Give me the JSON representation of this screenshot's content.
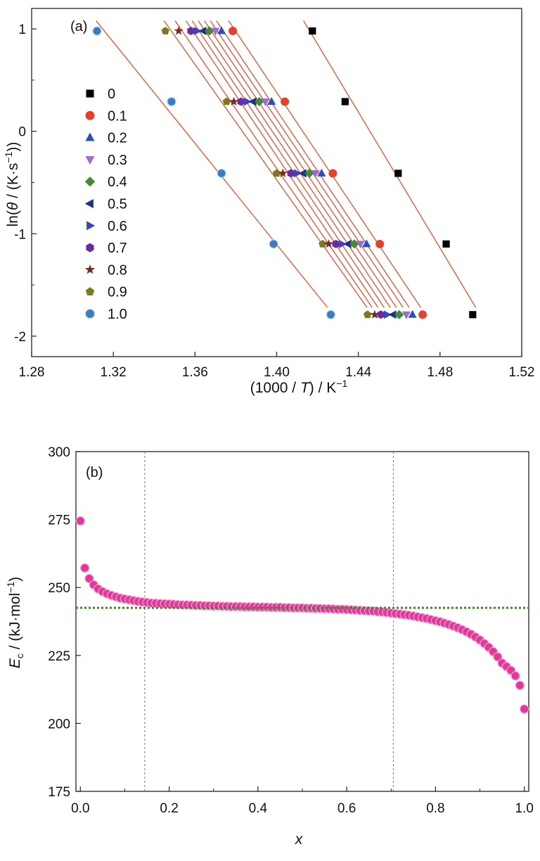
{
  "chart_data": [
    {
      "type": "scatter",
      "panel_label": "(a)",
      "xlabel": "(1000 / T) / K⁻¹",
      "ylabel": "ln(θ / (K·s⁻¹))",
      "xlim": [
        1.28,
        1.52
      ],
      "ylim": [
        -2.2,
        1.2
      ],
      "x_ticks": [
        "1.28",
        "1.32",
        "1.36",
        "1.40",
        "1.44",
        "1.48",
        "1.52"
      ],
      "y_ticks": [
        "1",
        "0",
        "-1",
        "-2"
      ],
      "y_levels": [
        0.98,
        0.29,
        -0.41,
        -1.1,
        -1.79
      ],
      "legend_position": "left",
      "fit_line_color": "#e8502a",
      "series": [
        {
          "name": "0",
          "marker": "square",
          "color": "#000000",
          "x": [
            1.4175,
            1.4335,
            1.4595,
            1.483,
            1.496
          ]
        },
        {
          "name": "0.1",
          "marker": "circle",
          "color": "#e8402c",
          "x": [
            1.3785,
            1.404,
            1.4275,
            1.4505,
            1.4715
          ]
        },
        {
          "name": "0.2",
          "marker": "triangle-up",
          "color": "#2c4fbe",
          "x": [
            1.373,
            1.3975,
            1.422,
            1.444,
            1.4665
          ]
        },
        {
          "name": "0.3",
          "marker": "triangle-down",
          "color": "#a06ad0",
          "x": [
            1.37,
            1.3945,
            1.419,
            1.441,
            1.4635
          ]
        },
        {
          "name": "0.4",
          "marker": "diamond",
          "color": "#3f8c32",
          "x": [
            1.367,
            1.3915,
            1.416,
            1.438,
            1.46
          ]
        },
        {
          "name": "0.5",
          "marker": "triangle-left",
          "color": "#1e2f86",
          "x": [
            1.364,
            1.3885,
            1.413,
            1.435,
            1.457
          ]
        },
        {
          "name": "0.6",
          "marker": "triangle-right",
          "color": "#3a44c6",
          "x": [
            1.361,
            1.3855,
            1.41,
            1.432,
            1.454
          ]
        },
        {
          "name": "0.7",
          "marker": "hexagon",
          "color": "#6b2a9e",
          "x": [
            1.358,
            1.3825,
            1.407,
            1.429,
            1.451
          ]
        },
        {
          "name": "0.8",
          "marker": "star",
          "color": "#7a2a22",
          "x": [
            1.352,
            1.379,
            1.403,
            1.4255,
            1.448
          ]
        },
        {
          "name": "0.9",
          "marker": "pentagon",
          "color": "#7a7a1e",
          "x": [
            1.3455,
            1.3755,
            1.4,
            1.4225,
            1.4445
          ]
        },
        {
          "name": "1.0",
          "marker": "sphere",
          "color": "#3a7ec0",
          "x": [
            1.312,
            1.3485,
            1.373,
            1.3985,
            1.4265
          ]
        }
      ]
    },
    {
      "type": "scatter",
      "panel_label": "(b)",
      "xlabel": "x",
      "ylabel": "E_c / (kJ·mol⁻¹)",
      "xlim": [
        -0.01,
        1.01
      ],
      "ylim": [
        175,
        300
      ],
      "x_ticks": [
        "0.0",
        "0.2",
        "0.4",
        "0.6",
        "0.8",
        "1.0"
      ],
      "y_ticks": [
        "175",
        "200",
        "225",
        "250",
        "275",
        "300"
      ],
      "marker_color": "#e2389a",
      "mean_line": {
        "y": 242.5,
        "color": "#3a8a2a",
        "style": "dotted"
      },
      "vlines": [
        0.145,
        0.705
      ],
      "x": [
        0.0,
        0.01,
        0.02,
        0.03,
        0.04,
        0.05,
        0.06,
        0.07,
        0.08,
        0.09,
        0.1,
        0.11,
        0.12,
        0.13,
        0.14,
        0.15,
        0.16,
        0.17,
        0.18,
        0.19,
        0.2,
        0.21,
        0.22,
        0.23,
        0.24,
        0.25,
        0.26,
        0.27,
        0.28,
        0.29,
        0.3,
        0.31,
        0.32,
        0.33,
        0.34,
        0.35,
        0.36,
        0.37,
        0.38,
        0.39,
        0.4,
        0.41,
        0.42,
        0.43,
        0.44,
        0.45,
        0.46,
        0.47,
        0.48,
        0.49,
        0.5,
        0.51,
        0.52,
        0.53,
        0.54,
        0.55,
        0.56,
        0.57,
        0.58,
        0.59,
        0.6,
        0.61,
        0.62,
        0.63,
        0.64,
        0.65,
        0.66,
        0.67,
        0.68,
        0.69,
        0.7,
        0.71,
        0.72,
        0.73,
        0.74,
        0.75,
        0.76,
        0.77,
        0.78,
        0.79,
        0.8,
        0.81,
        0.82,
        0.83,
        0.84,
        0.85,
        0.86,
        0.87,
        0.88,
        0.89,
        0.9,
        0.91,
        0.92,
        0.93,
        0.94,
        0.95,
        0.96,
        0.97,
        0.98,
        0.99,
        1.0
      ],
      "y": [
        274.5,
        257.2,
        253.3,
        251.0,
        249.5,
        248.5,
        247.7,
        247.1,
        246.6,
        246.1,
        245.8,
        245.5,
        245.2,
        244.9,
        244.7,
        244.5,
        244.3,
        244.2,
        244.1,
        244.0,
        243.9,
        243.8,
        243.7,
        243.6,
        243.6,
        243.5,
        243.4,
        243.4,
        243.3,
        243.3,
        243.2,
        243.2,
        243.1,
        243.1,
        243.0,
        243.0,
        243.0,
        242.9,
        242.9,
        242.9,
        242.8,
        242.8,
        242.8,
        242.7,
        242.7,
        242.7,
        242.6,
        242.6,
        242.5,
        242.5,
        242.5,
        242.4,
        242.4,
        242.3,
        242.3,
        242.2,
        242.2,
        242.1,
        242.0,
        242.0,
        241.9,
        241.8,
        241.7,
        241.6,
        241.5,
        241.4,
        241.3,
        241.1,
        241.0,
        240.8,
        240.6,
        240.4,
        240.2,
        240.0,
        239.8,
        239.5,
        239.2,
        238.9,
        238.6,
        238.2,
        237.8,
        237.4,
        236.9,
        236.4,
        235.8,
        235.2,
        234.5,
        233.7,
        232.8,
        231.8,
        230.7,
        229.4,
        228.0,
        226.4,
        224.5,
        222.2,
        220.9,
        219.5,
        217.5,
        214.0,
        205.3
      ]
    }
  ]
}
